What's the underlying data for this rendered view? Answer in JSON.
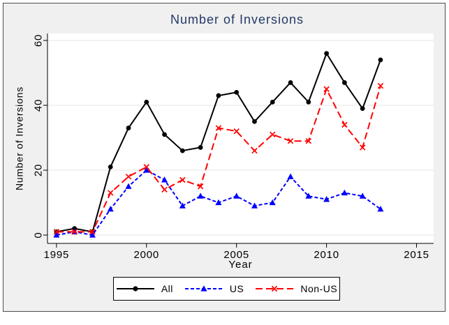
{
  "figure": {
    "background": "#f0f0f0",
    "border_color": "#4d4d4d",
    "plot_background": "#ffffff",
    "grid_color": "#e4e4e4",
    "axis_color": "#000000",
    "title_color": "#233a66",
    "legend_border_color": "#000000"
  },
  "chart_data": {
    "type": "line",
    "title": "Number of Inversions",
    "xlabel": "Year",
    "ylabel": "Number of Inversions",
    "x": [
      1995,
      1996,
      1997,
      1998,
      1999,
      2000,
      2001,
      2002,
      2003,
      2004,
      2005,
      2006,
      2007,
      2008,
      2009,
      2010,
      2011,
      2012,
      2013
    ],
    "series": [
      {
        "name": "All",
        "color": "#000000",
        "line_style": "solid",
        "marker": "circle",
        "values": [
          1,
          2,
          1,
          21,
          33,
          41,
          31,
          26,
          27,
          43,
          44,
          35,
          41,
          47,
          41,
          56,
          47,
          39,
          54
        ]
      },
      {
        "name": "US",
        "color": "#0000ff",
        "line_style": "dash-short",
        "marker": "triangle",
        "values": [
          0,
          1,
          0,
          8,
          15,
          20,
          17,
          9,
          12,
          10,
          12,
          9,
          10,
          18,
          12,
          11,
          13,
          12,
          8
        ]
      },
      {
        "name": "Non-US",
        "color": "#ff0000",
        "line_style": "dash-long",
        "marker": "x",
        "values": [
          1,
          1,
          1,
          13,
          18,
          21,
          14,
          17,
          15,
          33,
          32,
          26,
          31,
          29,
          29,
          45,
          34,
          27,
          46
        ]
      }
    ],
    "x_ticks": [
      1995,
      2000,
      2005,
      2010,
      2015
    ],
    "y_ticks": [
      0,
      20,
      40,
      60
    ],
    "xlim": [
      1994.5,
      2015.95
    ],
    "ylim": [
      0,
      60
    ],
    "grid": true,
    "legend_position": "bottom"
  }
}
